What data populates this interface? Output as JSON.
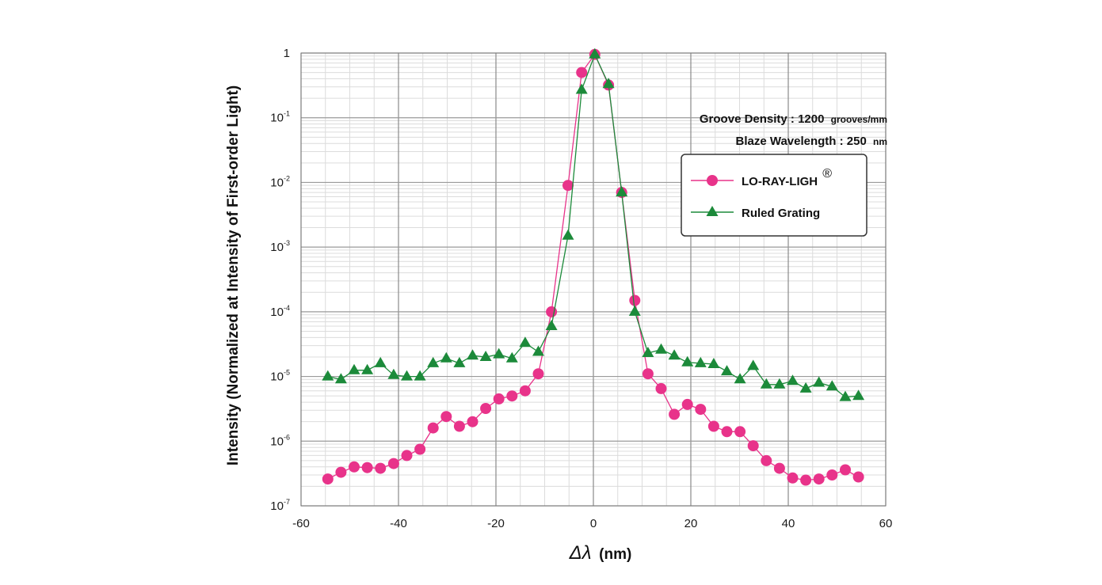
{
  "chart_data": {
    "type": "line",
    "xlabel_symbol": "Δλ",
    "xlabel_unit": "(nm)",
    "ylabel": "Intensity (Normalized at Intensity of First-order Light)",
    "xlim": [
      -60,
      60
    ],
    "ylim": [
      1e-07,
      1
    ],
    "yscale": "log",
    "grid": true,
    "x_ticks": [
      -60,
      -40,
      -20,
      0,
      20,
      40,
      60
    ],
    "x_tick_labels": [
      "-60",
      "-40",
      "-20",
      "0",
      "20",
      "40",
      "60"
    ],
    "y_ticks": [
      {
        "value": 1,
        "base": "1",
        "exp": ""
      },
      {
        "value": 0.1,
        "base": "10",
        "exp": "-1"
      },
      {
        "value": 0.01,
        "base": "10",
        "exp": "-2"
      },
      {
        "value": 0.001,
        "base": "10",
        "exp": "-3"
      },
      {
        "value": 0.0001,
        "base": "10",
        "exp": "-4"
      },
      {
        "value": 1e-05,
        "base": "10",
        "exp": "-5"
      },
      {
        "value": 1e-06,
        "base": "10",
        "exp": "-6"
      },
      {
        "value": 1e-07,
        "base": "10",
        "exp": "-7"
      }
    ],
    "annotations": {
      "groove_label": "Groove Density : 1200",
      "groove_unit": "grooves/mm",
      "blaze_label": "Blaze Wavelength : 250",
      "blaze_unit": "nm"
    },
    "legend_position": "upper-right",
    "series": [
      {
        "name": "LO-RAY-LIGH",
        "name_mark": "®",
        "marker": "circle",
        "color": "#e8338a",
        "line_color": "#e8338a",
        "x": [
          -54.5,
          -51.8,
          -49.1,
          -46.4,
          -43.7,
          -41.0,
          -38.3,
          -35.6,
          -32.9,
          -30.2,
          -27.5,
          -24.8,
          -22.1,
          -19.4,
          -16.7,
          -14.0,
          -11.3,
          -8.6,
          -5.2,
          -2.4,
          0.3,
          3.1,
          5.8,
          8.5,
          11.2,
          13.9,
          16.6,
          19.3,
          22.0,
          24.7,
          27.4,
          30.1,
          32.8,
          35.5,
          38.2,
          40.9,
          43.6,
          46.3,
          49.0,
          51.7,
          54.4
        ],
        "y": [
          2.6e-07,
          3.3e-07,
          4e-07,
          3.9e-07,
          3.8e-07,
          4.5e-07,
          6e-07,
          7.5e-07,
          1.6e-06,
          2.4e-06,
          1.7e-06,
          2e-06,
          3.2e-06,
          4.5e-06,
          5e-06,
          6e-06,
          1.1e-05,
          0.0001,
          0.009,
          0.5,
          0.95,
          0.32,
          0.007,
          0.00015,
          1.1e-05,
          6.5e-06,
          2.6e-06,
          3.7e-06,
          3.1e-06,
          1.7e-06,
          1.4e-06,
          1.4e-06,
          8.5e-07,
          5e-07,
          3.8e-07,
          2.7e-07,
          2.5e-07,
          2.6e-07,
          3e-07,
          3.6e-07,
          2.8e-07
        ]
      },
      {
        "name": "Ruled Grating",
        "name_mark": "",
        "marker": "triangle",
        "color": "#1c8a3a",
        "line_color": "#1c8a3a",
        "x": [
          -54.5,
          -51.8,
          -49.1,
          -46.4,
          -43.7,
          -41.0,
          -38.3,
          -35.6,
          -32.9,
          -30.2,
          -27.5,
          -24.8,
          -22.1,
          -19.4,
          -16.7,
          -14.0,
          -11.3,
          -8.6,
          -5.2,
          -2.4,
          0.3,
          3.1,
          5.8,
          8.5,
          11.2,
          13.9,
          16.6,
          19.3,
          22.0,
          24.7,
          27.4,
          30.1,
          32.8,
          35.5,
          38.2,
          40.9,
          43.6,
          46.3,
          49.0,
          51.7,
          54.4
        ],
        "y": [
          1e-05,
          9e-06,
          1.25e-05,
          1.25e-05,
          1.6e-05,
          1.05e-05,
          1e-05,
          1e-05,
          1.6e-05,
          1.9e-05,
          1.6e-05,
          2.1e-05,
          2e-05,
          2.2e-05,
          1.9e-05,
          3.3e-05,
          2.4e-05,
          6e-05,
          0.0015,
          0.27,
          0.95,
          0.33,
          0.007,
          0.0001,
          2.3e-05,
          2.6e-05,
          2.1e-05,
          1.65e-05,
          1.6e-05,
          1.55e-05,
          1.2e-05,
          9e-06,
          1.45e-05,
          7.5e-06,
          7.5e-06,
          8.5e-06,
          6.5e-06,
          8e-06,
          7e-06,
          4.8e-06,
          5e-06
        ]
      }
    ]
  }
}
